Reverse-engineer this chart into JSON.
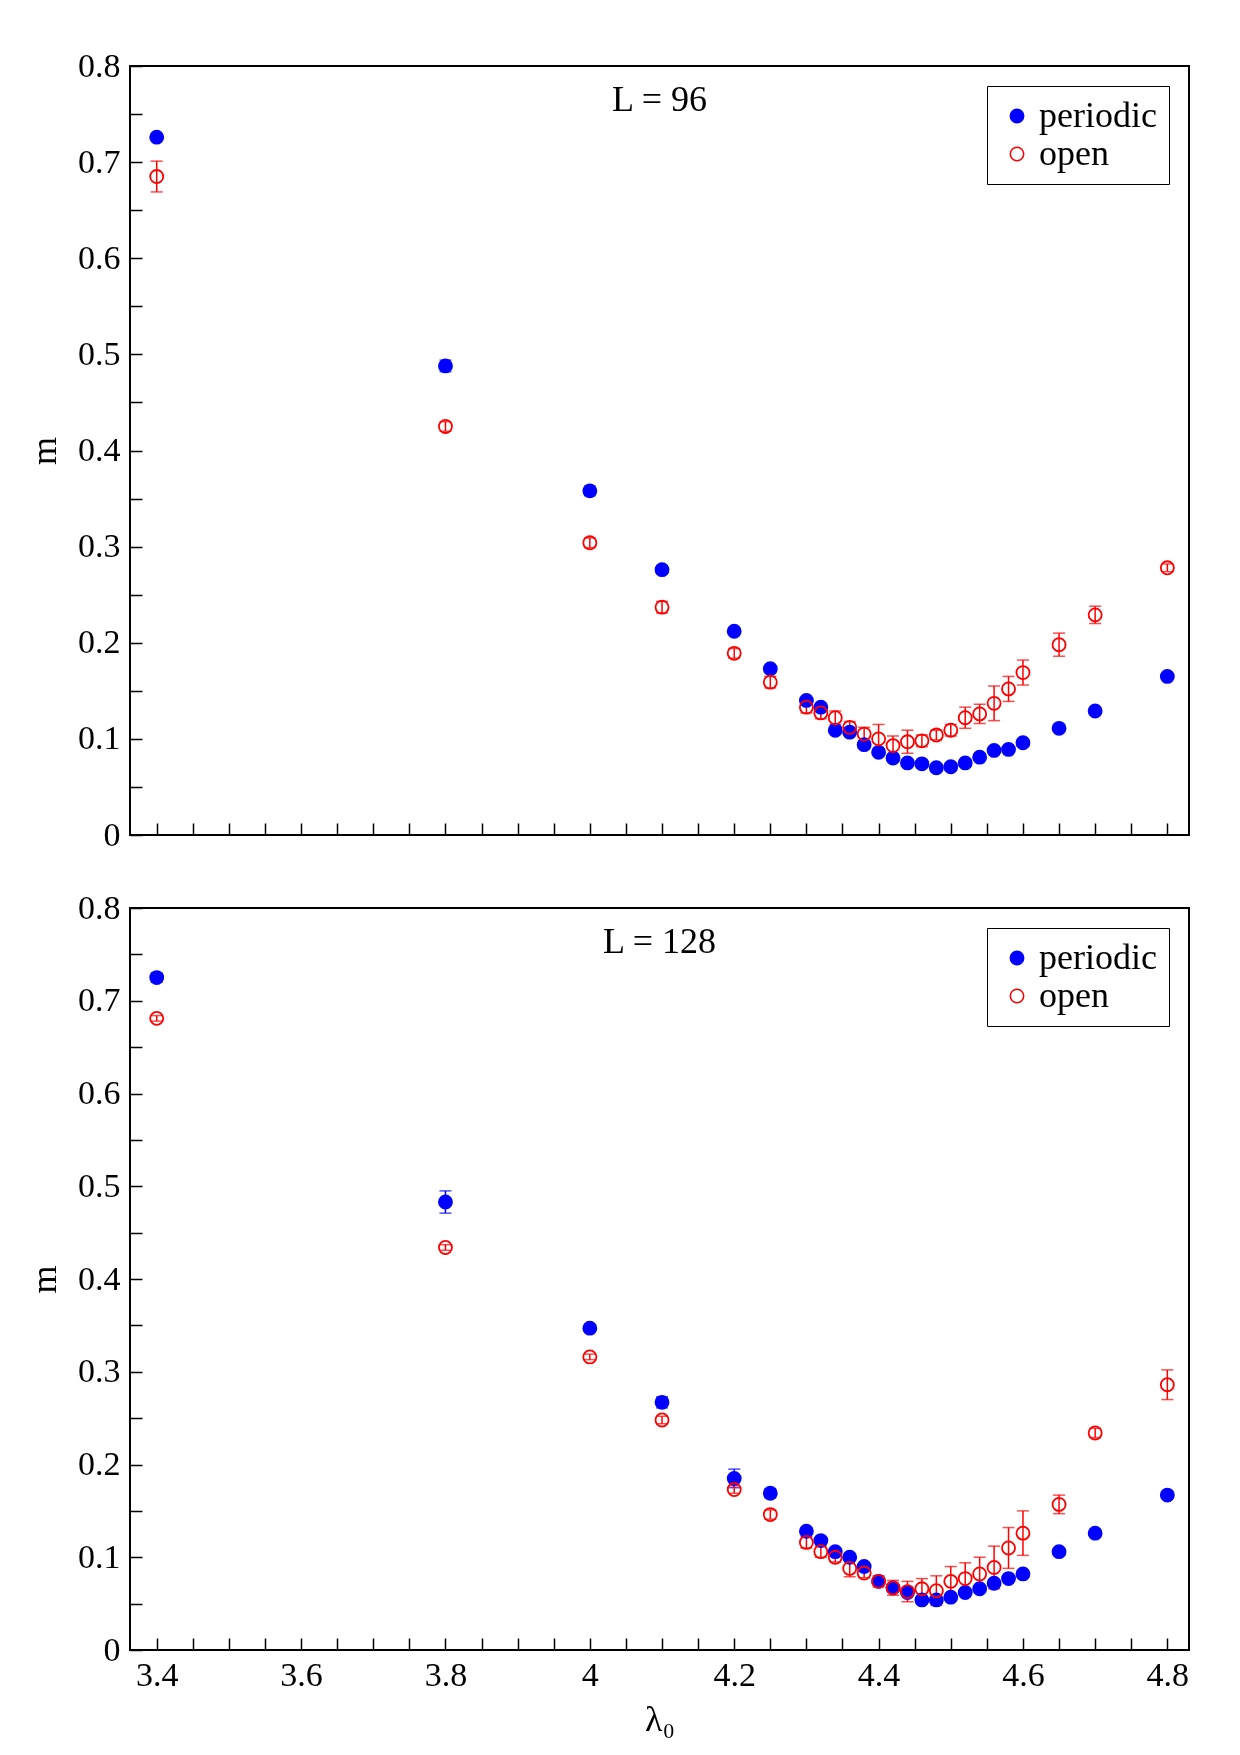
{
  "chart_data": [
    {
      "type": "scatter",
      "title": "L = 96",
      "ylabel": "m",
      "xlim": [
        3.363,
        4.83
      ],
      "ylim": [
        0,
        0.8
      ],
      "xticks": [
        3.4,
        {
          "value": 3.45,
          "label": null
        },
        {
          "value": 3.5,
          "label": null
        },
        {
          "value": 3.55,
          "label": null
        },
        3.6,
        {
          "value": 3.65,
          "label": null
        },
        {
          "value": 3.7,
          "label": null
        },
        {
          "value": 3.75,
          "label": null
        },
        3.8,
        {
          "value": 3.85,
          "label": null
        },
        {
          "value": 3.9,
          "label": null
        },
        {
          "value": 3.95,
          "label": null
        },
        4,
        {
          "value": 4.05,
          "label": null
        },
        {
          "value": 4.1,
          "label": null
        },
        {
          "value": 4.15,
          "label": null
        },
        4.2,
        {
          "value": 4.25,
          "label": null
        },
        {
          "value": 4.3,
          "label": null
        },
        {
          "value": 4.35,
          "label": null
        },
        4.4,
        {
          "value": 4.45,
          "label": null
        },
        {
          "value": 4.5,
          "label": null
        },
        {
          "value": 4.55,
          "label": null
        },
        4.6,
        {
          "value": 4.65,
          "label": null
        },
        {
          "value": 4.7,
          "label": null
        },
        {
          "value": 4.75,
          "label": null
        },
        4.8
      ],
      "yticks": [
        0,
        {
          "value": 0.05,
          "label": null
        },
        0.1,
        {
          "value": 0.15,
          "label": null
        },
        0.2,
        {
          "value": 0.25,
          "label": null
        },
        0.3,
        {
          "value": 0.35,
          "label": null
        },
        0.4,
        {
          "value": 0.45,
          "label": null
        },
        0.5,
        {
          "value": 0.55,
          "label": null
        },
        0.6,
        {
          "value": 0.65,
          "label": null
        },
        0.7,
        {
          "value": 0.75,
          "label": null
        },
        0.8
      ],
      "tick_labels": "y",
      "legend": "top right",
      "marker": "circle",
      "grid": false,
      "x": [
        3.4,
        3.8,
        4.0,
        4.1,
        4.2,
        4.25,
        4.3,
        4.32,
        4.34,
        4.36,
        4.38,
        4.4,
        4.42,
        4.44,
        4.46,
        4.48,
        4.5,
        4.52,
        4.54,
        4.56,
        4.58,
        4.6,
        4.65,
        4.7,
        4.8
      ],
      "series": [
        {
          "name": "periodic",
          "color": "#0000ff",
          "values": [
            0.726,
            0.488,
            0.358,
            0.276,
            0.212,
            0.173,
            0.14,
            0.133,
            0.109,
            0.107,
            0.094,
            0.086,
            0.08,
            0.075,
            0.074,
            0.07,
            0.071,
            0.075,
            0.081,
            0.088,
            0.089,
            0.096,
            0.111,
            0.129,
            0.165
          ],
          "errors": [
            null,
            0.006,
            0.005,
            0.004,
            null,
            null,
            null,
            null,
            null,
            null,
            null,
            null,
            null,
            null,
            null,
            null,
            null,
            null,
            null,
            null,
            null,
            null,
            null,
            null,
            null
          ]
        },
        {
          "name": "open",
          "color": "#ff0000",
          "values": [
            0.685,
            0.425,
            0.304,
            0.237,
            0.189,
            0.159,
            0.133,
            0.127,
            0.122,
            0.112,
            0.105,
            0.1,
            0.093,
            0.097,
            0.098,
            0.104,
            0.109,
            0.122,
            0.126,
            0.137,
            0.152,
            0.169,
            0.198,
            0.229,
            0.278
          ],
          "errors": [
            0.016,
            0.005,
            0.005,
            0.006,
            0.005,
            0.006,
            0.006,
            0.006,
            0.007,
            0.006,
            0.007,
            0.015,
            0.01,
            0.012,
            0.006,
            0.005,
            0.006,
            0.011,
            0.01,
            0.018,
            0.013,
            0.013,
            0.012,
            0.009,
            0.004
          ]
        }
      ]
    },
    {
      "type": "scatter",
      "title": "L = 128",
      "xlabel": "λ₀",
      "ylabel": "m",
      "xlim": [
        3.363,
        4.83
      ],
      "ylim": [
        0,
        0.8
      ],
      "xticks": [
        3.4,
        {
          "value": 3.45,
          "label": null
        },
        {
          "value": 3.5,
          "label": null
        },
        {
          "value": 3.55,
          "label": null
        },
        3.6,
        {
          "value": 3.65,
          "label": null
        },
        {
          "value": 3.7,
          "label": null
        },
        {
          "value": 3.75,
          "label": null
        },
        3.8,
        {
          "value": 3.85,
          "label": null
        },
        {
          "value": 3.9,
          "label": null
        },
        {
          "value": 3.95,
          "label": null
        },
        4,
        {
          "value": 4.05,
          "label": null
        },
        {
          "value": 4.1,
          "label": null
        },
        {
          "value": 4.15,
          "label": null
        },
        4.2,
        {
          "value": 4.25,
          "label": null
        },
        {
          "value": 4.3,
          "label": null
        },
        {
          "value": 4.35,
          "label": null
        },
        4.4,
        {
          "value": 4.45,
          "label": null
        },
        {
          "value": 4.5,
          "label": null
        },
        {
          "value": 4.55,
          "label": null
        },
        4.6,
        {
          "value": 4.65,
          "label": null
        },
        {
          "value": 4.7,
          "label": null
        },
        {
          "value": 4.75,
          "label": null
        },
        4.8
      ],
      "yticks": [
        0,
        {
          "value": 0.05,
          "label": null
        },
        0.1,
        {
          "value": 0.15,
          "label": null
        },
        0.2,
        {
          "value": 0.25,
          "label": null
        },
        0.3,
        {
          "value": 0.35,
          "label": null
        },
        0.4,
        {
          "value": 0.45,
          "label": null
        },
        0.5,
        {
          "value": 0.55,
          "label": null
        },
        0.6,
        {
          "value": 0.65,
          "label": null
        },
        0.7,
        {
          "value": 0.75,
          "label": null
        },
        0.8
      ],
      "legend": "top right",
      "marker": "circle",
      "grid": false,
      "x": [
        3.4,
        3.8,
        4.0,
        4.1,
        4.2,
        4.25,
        4.3,
        4.32,
        4.34,
        4.36,
        4.38,
        4.4,
        4.42,
        4.44,
        4.46,
        4.48,
        4.5,
        4.52,
        4.54,
        4.56,
        4.58,
        4.6,
        4.65,
        4.7,
        4.8
      ],
      "series": [
        {
          "name": "periodic",
          "color": "#0000ff",
          "values": [
            0.725,
            0.483,
            0.347,
            0.267,
            0.185,
            0.169,
            0.128,
            0.118,
            0.106,
            0.1,
            0.09,
            0.074,
            0.067,
            0.062,
            0.054,
            0.054,
            0.057,
            0.062,
            0.066,
            0.072,
            0.077,
            0.082,
            0.106,
            0.126,
            0.167
          ],
          "errors": [
            0.005,
            0.012,
            null,
            0.006,
            0.01,
            0.005,
            null,
            null,
            null,
            null,
            null,
            null,
            null,
            null,
            null,
            null,
            null,
            null,
            null,
            null,
            null,
            null,
            null,
            null,
            null
          ]
        },
        {
          "name": "open",
          "color": "#ff0000",
          "values": [
            0.681,
            0.434,
            0.316,
            0.248,
            0.173,
            0.146,
            0.116,
            0.106,
            0.1,
            0.088,
            0.083,
            0.074,
            0.067,
            0.063,
            0.066,
            0.064,
            0.074,
            0.077,
            0.082,
            0.089,
            0.11,
            0.126,
            0.157,
            0.234,
            0.286
          ],
          "errors": [
            0.003,
            0.003,
            0.003,
            0.004,
            0.004,
            0.005,
            0.006,
            0.006,
            0.005,
            0.009,
            0.005,
            0.006,
            0.008,
            0.011,
            0.011,
            0.016,
            0.016,
            0.017,
            0.018,
            0.023,
            0.022,
            0.024,
            0.01,
            0.005,
            0.016
          ]
        }
      ]
    }
  ]
}
